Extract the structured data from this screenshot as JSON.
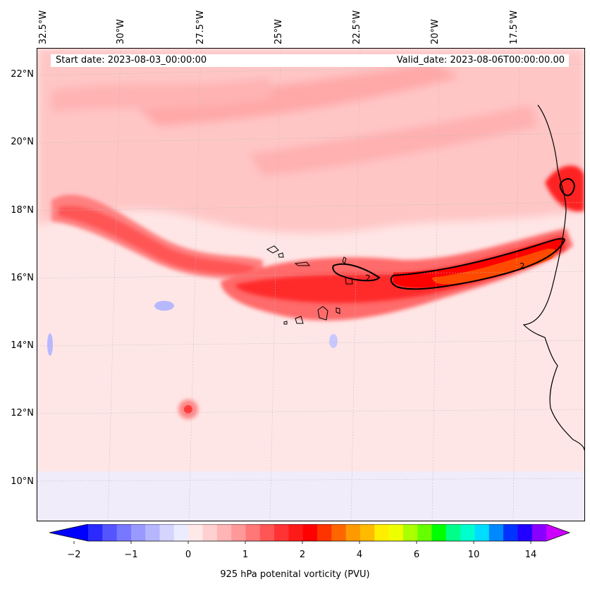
{
  "map": {
    "start_label": "Start date: 2023-08-03_00:00:00",
    "valid_label": "Valid_date: 2023-08-06T00:00:00.00",
    "lon_labels": [
      "32.5°W",
      "30°W",
      "27.5°W",
      "25°W",
      "22.5°W",
      "20°W",
      "17.5°W"
    ],
    "lat_labels": [
      "22°N",
      "20°N",
      "18°N",
      "16°N",
      "14°N",
      "12°N",
      "10°N"
    ],
    "contour_labels": [
      "2",
      "2"
    ]
  },
  "colorbar": {
    "title": "925 hPa potenital vorticity (PVU)",
    "tick_labels": [
      "−2",
      "−1",
      "0",
      "1",
      "2",
      "4",
      "6",
      "10",
      "14"
    ],
    "colors": [
      "#0000ff",
      "#2a2aff",
      "#5555ff",
      "#7777ff",
      "#9999ff",
      "#b6b6ff",
      "#d4d4ff",
      "#ececff",
      "#ffe8e8",
      "#ffd0d0",
      "#ffb5b5",
      "#ff9999",
      "#ff7777",
      "#ff5555",
      "#ff3333",
      "#ff1a1a",
      "#ff0000",
      "#ff3300",
      "#ff6600",
      "#ff9900",
      "#ffbb00",
      "#ffee00",
      "#eeff00",
      "#aaff00",
      "#66ff00",
      "#00ff00",
      "#00ff88",
      "#00ffcc",
      "#00ddff",
      "#0088ff",
      "#0033ff",
      "#2200ff",
      "#8800ff",
      "#cc00ff"
    ]
  }
}
